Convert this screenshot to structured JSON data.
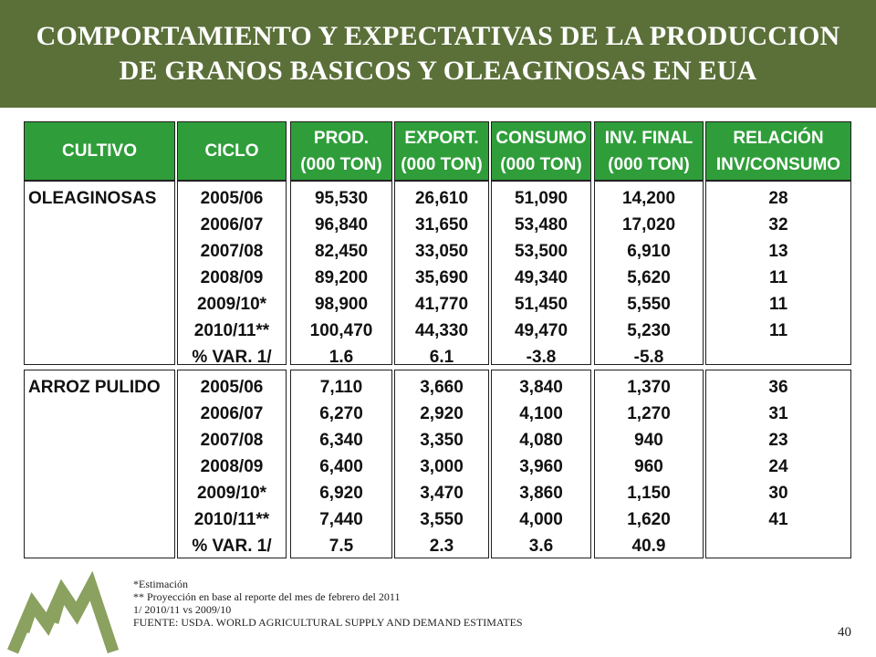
{
  "title": {
    "line1": "COMPORTAMIENTO Y EXPECTATIVAS DE LA PRODUCCION",
    "line2": "DE GRANOS BASICOS Y OLEAGINOSAS EN EUA"
  },
  "headers": [
    {
      "line1": "CULTIVO",
      "line2": ""
    },
    {
      "line1": "CICLO",
      "line2": ""
    },
    {
      "line1": "PROD.",
      "line2": "(000 TON)"
    },
    {
      "line1": "EXPORT.",
      "line2": "(000 TON)"
    },
    {
      "line1": "CONSUMO",
      "line2": "(000 TON)"
    },
    {
      "line1": "INV. FINAL",
      "line2": "(000 TON)"
    },
    {
      "line1": "RELACIÓN",
      "line2": "INV/CONSUMO"
    }
  ],
  "groups": [
    {
      "crop": "OLEAGINOSAS",
      "rows": [
        {
          "ciclo": "2005/06",
          "prod": "95,530",
          "export": "26,610",
          "consumo": "51,090",
          "inv": "14,200",
          "rel": "28"
        },
        {
          "ciclo": "2006/07",
          "prod": "96,840",
          "export": "31,650",
          "consumo": "53,480",
          "inv": "17,020",
          "rel": "32"
        },
        {
          "ciclo": "2007/08",
          "prod": "82,450",
          "export": "33,050",
          "consumo": "53,500",
          "inv": "6,910",
          "rel": "13"
        },
        {
          "ciclo": "2008/09",
          "prod": "89,200",
          "export": "35,690",
          "consumo": "49,340",
          "inv": "5,620",
          "rel": "11"
        },
        {
          "ciclo": "2009/10*",
          "prod": "98,900",
          "export": "41,770",
          "consumo": "51,450",
          "inv": "5,550",
          "rel": "11"
        },
        {
          "ciclo": "2010/11**",
          "prod": "100,470",
          "export": "44,330",
          "consumo": "49,470",
          "inv": "5,230",
          "rel": "11"
        },
        {
          "ciclo": "% VAR. 1/",
          "prod": "1.6",
          "export": "6.1",
          "consumo": "-3.8",
          "inv": "-5.8",
          "rel": ""
        }
      ]
    },
    {
      "crop": "ARROZ PULIDO",
      "rows": [
        {
          "ciclo": "2005/06",
          "prod": "7,110",
          "export": "3,660",
          "consumo": "3,840",
          "inv": "1,370",
          "rel": "36"
        },
        {
          "ciclo": "2006/07",
          "prod": "6,270",
          "export": "2,920",
          "consumo": "4,100",
          "inv": "1,270",
          "rel": "31"
        },
        {
          "ciclo": "2007/08",
          "prod": "6,340",
          "export": "3,350",
          "consumo": "4,080",
          "inv": "940",
          "rel": "23"
        },
        {
          "ciclo": "2008/09",
          "prod": "6,400",
          "export": "3,000",
          "consumo": "3,960",
          "inv": "960",
          "rel": "24"
        },
        {
          "ciclo": "2009/10*",
          "prod": "6,920",
          "export": "3,470",
          "consumo": "3,860",
          "inv": "1,150",
          "rel": "30"
        },
        {
          "ciclo": "2010/11**",
          "prod": "7,440",
          "export": "3,550",
          "consumo": "4,000",
          "inv": "1,620",
          "rel": "41"
        },
        {
          "ciclo": "% VAR. 1/",
          "prod": "7.5",
          "export": "2.3",
          "consumo": "3.6",
          "inv": "40.9",
          "rel": ""
        }
      ]
    }
  ],
  "footnotes": [
    "*Estimación",
    "** Proyección en base al reporte  del mes de febrero del 2011",
    "1/ 2010/11 vs 2009/10",
    "FUENTE: USDA. WORLD AGRICULTURAL SUPPLY AND DEMAND ESTIMATES"
  ],
  "page_number": "40",
  "colors": {
    "banner": "#5b7039",
    "header": "#2f9e3a",
    "logo": "#8aa15f"
  },
  "logo_icon": "triple-peak-logo-icon"
}
